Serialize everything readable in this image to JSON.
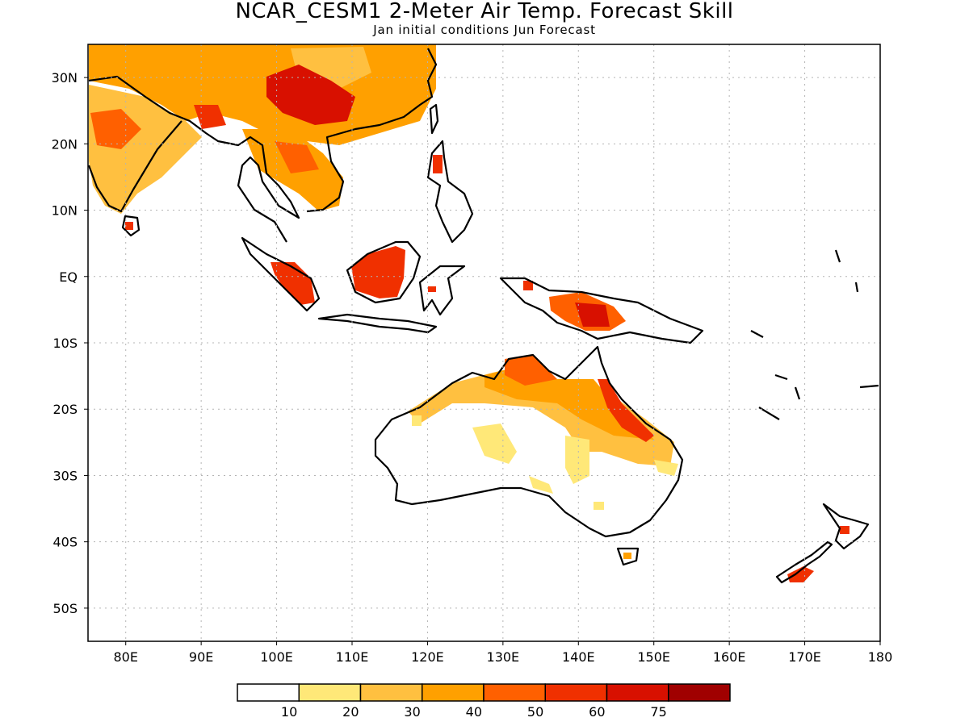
{
  "title": "NCAR_CESM1 2-Meter Air Temp. Forecast Skill",
  "subtitle": "Jan initial conditions  Jun Forecast",
  "map": {
    "lon_range": [
      75,
      180
    ],
    "lat_range": [
      -55,
      35
    ],
    "lon_ticks": [
      {
        "lon": 80,
        "label": "80E"
      },
      {
        "lon": 90,
        "label": "90E"
      },
      {
        "lon": 100,
        "label": "100E"
      },
      {
        "lon": 110,
        "label": "110E"
      },
      {
        "lon": 120,
        "label": "120E"
      },
      {
        "lon": 130,
        "label": "130E"
      },
      {
        "lon": 140,
        "label": "140E"
      },
      {
        "lon": 150,
        "label": "150E"
      },
      {
        "lon": 160,
        "label": "160E"
      },
      {
        "lon": 170,
        "label": "170E"
      },
      {
        "lon": 180,
        "label": "180"
      }
    ],
    "lat_ticks": [
      {
        "lat": 30,
        "label": "30N"
      },
      {
        "lat": 20,
        "label": "20N"
      },
      {
        "lat": 10,
        "label": "10N"
      },
      {
        "lat": 0,
        "label": "EQ"
      },
      {
        "lat": -10,
        "label": "10S"
      },
      {
        "lat": -20,
        "label": "20S"
      },
      {
        "lat": -30,
        "label": "30S"
      },
      {
        "lat": -40,
        "label": "40S"
      },
      {
        "lat": -50,
        "label": "50S"
      }
    ],
    "grid": true
  },
  "colorbar": {
    "colors": [
      "#ffffff",
      "#ffe878",
      "#ffc040",
      "#ffa000",
      "#ff6000",
      "#f03000",
      "#d81000",
      "#a00000"
    ],
    "labels": [
      "10",
      "20",
      "30",
      "40",
      "50",
      "60",
      "75"
    ]
  },
  "skill_regions": [
    {
      "name": "china-north",
      "level": 3
    },
    {
      "name": "china-core",
      "level": 6
    },
    {
      "name": "india",
      "level": 3
    },
    {
      "name": "india-core",
      "level": 4
    },
    {
      "name": "indochina",
      "level": 3
    },
    {
      "name": "sumatra",
      "level": 5
    },
    {
      "name": "borneo",
      "level": 5
    },
    {
      "name": "new-guinea",
      "level": 6
    },
    {
      "name": "northern-australia",
      "level": 3
    },
    {
      "name": "queensland",
      "level": 5
    },
    {
      "name": "central-australia",
      "level": 1
    },
    {
      "name": "new-zealand-south",
      "level": 5
    }
  ]
}
